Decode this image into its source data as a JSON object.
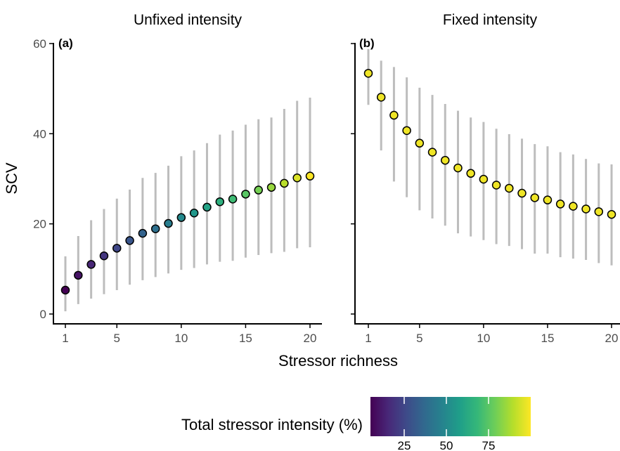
{
  "chart_data": [
    {
      "type": "scatter",
      "panel_tag": "(a)",
      "title": "Unfixed intensity",
      "xlabel": "Stressor richness",
      "ylabel": "SCV",
      "xlim": [
        1,
        20
      ],
      "ylim": [
        0,
        60
      ],
      "xticks": [
        1,
        5,
        10,
        15,
        20
      ],
      "yticks": [
        0,
        20,
        40,
        60
      ],
      "x": [
        1,
        2,
        3,
        4,
        5,
        6,
        7,
        8,
        9,
        10,
        11,
        12,
        13,
        14,
        15,
        16,
        17,
        18,
        19,
        20
      ],
      "y": [
        5.3,
        8.6,
        11.0,
        12.9,
        14.6,
        16.3,
        17.9,
        18.9,
        20.1,
        21.4,
        22.4,
        23.7,
        24.9,
        25.5,
        26.6,
        27.5,
        28.1,
        29.0,
        30.2,
        30.6
      ],
      "y_low": [
        0.6,
        2.2,
        3.4,
        4.4,
        5.3,
        6.5,
        7.5,
        8.2,
        9.0,
        9.8,
        10.2,
        11.0,
        11.6,
        11.8,
        12.5,
        13.1,
        13.5,
        13.8,
        14.6,
        14.8
      ],
      "y_high": [
        12.8,
        17.3,
        20.8,
        23.3,
        25.6,
        27.6,
        30.2,
        31.3,
        32.9,
        35.0,
        36.3,
        37.9,
        39.8,
        40.7,
        42.0,
        43.2,
        43.6,
        45.5,
        47.3,
        48.0
      ],
      "color_intensity": [
        5,
        10,
        15,
        20,
        25,
        30,
        35,
        40,
        45,
        50,
        55,
        60,
        65,
        70,
        75,
        80,
        85,
        90,
        95,
        100
      ],
      "grid": false
    },
    {
      "type": "scatter",
      "panel_tag": "(b)",
      "title": "Fixed intensity",
      "xlabel": "Stressor richness",
      "ylabel": "",
      "xlim": [
        1,
        20
      ],
      "ylim": [
        0,
        60
      ],
      "xticks": [
        1,
        5,
        10,
        15,
        20
      ],
      "yticks": [
        0,
        20,
        40,
        60
      ],
      "x": [
        1,
        2,
        3,
        4,
        5,
        6,
        7,
        8,
        9,
        10,
        11,
        12,
        13,
        14,
        15,
        16,
        17,
        18,
        19,
        20
      ],
      "y": [
        53.4,
        48.1,
        44.1,
        40.7,
        37.9,
        35.9,
        34.1,
        32.4,
        31.2,
        29.9,
        28.6,
        27.9,
        26.8,
        25.8,
        25.3,
        24.4,
        23.9,
        23.3,
        22.7,
        22.1
      ],
      "y_low": [
        46.4,
        36.3,
        29.4,
        25.9,
        23.0,
        21.2,
        19.6,
        17.9,
        17.2,
        16.4,
        15.5,
        15.1,
        14.4,
        13.4,
        13.4,
        12.6,
        12.3,
        12.0,
        11.3,
        10.8
      ],
      "y_high": [
        58.8,
        56.2,
        54.8,
        52.5,
        50.2,
        48.6,
        46.6,
        45.1,
        43.6,
        42.6,
        41.1,
        39.9,
        38.9,
        37.7,
        37.2,
        35.9,
        35.4,
        34.4,
        33.4,
        33.2
      ],
      "color_intensity": [
        98,
        98,
        98,
        98,
        98,
        98,
        98,
        98,
        98,
        98,
        98,
        98,
        98,
        98,
        98,
        98,
        98,
        98,
        98,
        98
      ],
      "grid": false
    }
  ],
  "legend": {
    "title": "Total stressor intensity (%)",
    "ticks": [
      25,
      50,
      75
    ],
    "range": [
      5,
      100
    ],
    "palette": [
      "#440154",
      "#482878",
      "#3e4a89",
      "#31688e",
      "#26828e",
      "#1f9e89",
      "#35b779",
      "#6ece58",
      "#b5de2b",
      "#fde725"
    ],
    "placement": "bottom"
  },
  "shared_xlabel": "Stressor richness"
}
